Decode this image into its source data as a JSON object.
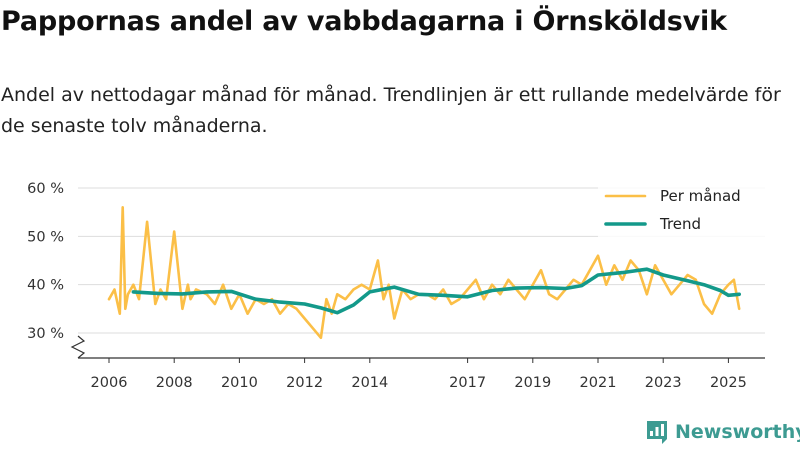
{
  "title": "Pappornas andel av vabbdagarna i Örnsköldsvik",
  "subtitle": "Andel av nettodagar månad för månad. Trendlinjen är ett rullande medelvärde för de senaste tolv månaderna.",
  "brand": {
    "name": "Newsworthy",
    "icon": "newsworthy-logo-icon"
  },
  "colors": {
    "monthly": "#fbbf47",
    "trend": "#13998a",
    "grid": "#dddddd",
    "axis": "#333333"
  },
  "chart_data": {
    "type": "line",
    "x_unit": "year",
    "xlim": [
      2005.6,
      2025.7
    ],
    "ylim": [
      25,
      60
    ],
    "y_ticks": [
      30,
      40,
      50,
      60
    ],
    "y_tick_labels": [
      "30 %",
      "40 %",
      "50 %",
      "60 %"
    ],
    "x_ticks": [
      2006,
      2008,
      2010,
      2012,
      2014,
      2017,
      2019,
      2021,
      2023,
      2025
    ],
    "x_tick_labels": [
      "2006",
      "2008",
      "2010",
      "2012",
      "2014",
      "2017",
      "2019",
      "2021",
      "2023",
      "2025"
    ],
    "y_axis_break": true,
    "grid": true,
    "legend_position": "top-right",
    "series": [
      {
        "name": "Per månad",
        "x": [
          2006.0,
          2006.17,
          2006.33,
          2006.42,
          2006.5,
          2006.58,
          2006.75,
          2006.92,
          2007.17,
          2007.42,
          2007.58,
          2007.75,
          2008.0,
          2008.25,
          2008.42,
          2008.5,
          2008.67,
          2009.0,
          2009.25,
          2009.5,
          2009.75,
          2010.0,
          2010.25,
          2010.5,
          2010.75,
          2011.0,
          2011.25,
          2011.5,
          2011.75,
          2012.0,
          2012.25,
          2012.5,
          2012.67,
          2012.83,
          2013.0,
          2013.25,
          2013.5,
          2013.75,
          2014.0,
          2014.25,
          2014.42,
          2014.58,
          2014.75,
          2015.0,
          2015.25,
          2015.5,
          2015.75,
          2016.0,
          2016.25,
          2016.5,
          2016.75,
          2017.0,
          2017.25,
          2017.5,
          2017.75,
          2018.0,
          2018.25,
          2018.5,
          2018.75,
          2019.0,
          2019.25,
          2019.5,
          2019.75,
          2020.0,
          2020.25,
          2020.5,
          2020.75,
          2021.0,
          2021.25,
          2021.5,
          2021.75,
          2022.0,
          2022.25,
          2022.5,
          2022.75,
          2023.0,
          2023.25,
          2023.5,
          2023.75,
          2024.0,
          2024.25,
          2024.5,
          2024.75,
          2025.0,
          2025.17,
          2025.33
        ],
        "values": [
          37,
          39,
          34,
          56,
          35,
          38,
          40,
          37,
          53,
          36,
          39,
          37,
          51,
          35,
          40,
          37,
          39,
          38,
          36,
          40,
          35,
          38,
          34,
          37,
          36,
          37,
          34,
          36,
          35,
          33,
          31,
          29,
          37,
          34,
          38,
          37,
          39,
          40,
          39,
          45,
          37,
          40,
          33,
          39,
          37,
          38,
          38,
          37,
          39,
          36,
          37,
          39,
          41,
          37,
          40,
          38,
          41,
          39,
          37,
          40,
          43,
          38,
          37,
          39,
          41,
          40,
          43,
          46,
          40,
          44,
          41,
          45,
          43,
          38,
          44,
          41,
          38,
          40,
          42,
          41,
          36,
          34,
          38,
          40,
          41,
          35
        ]
      },
      {
        "name": "Trend",
        "x": [
          2006.75,
          2007.5,
          2008.25,
          2009.0,
          2009.75,
          2010.5,
          2011.25,
          2012.0,
          2012.5,
          2013.0,
          2013.5,
          2014.0,
          2014.75,
          2015.5,
          2016.25,
          2017.0,
          2017.75,
          2018.5,
          2019.25,
          2020.0,
          2020.5,
          2021.0,
          2021.75,
          2022.5,
          2023.0,
          2023.75,
          2024.25,
          2024.75,
          2025.0,
          2025.33
        ],
        "values": [
          38.5,
          38.2,
          38.1,
          38.5,
          38.6,
          37.0,
          36.4,
          36.0,
          35.2,
          34.2,
          35.8,
          38.5,
          39.5,
          38.0,
          37.8,
          37.5,
          38.8,
          39.3,
          39.4,
          39.2,
          39.8,
          42.0,
          42.5,
          43.2,
          42.0,
          40.8,
          40.0,
          38.8,
          37.8,
          38.0
        ]
      }
    ]
  }
}
